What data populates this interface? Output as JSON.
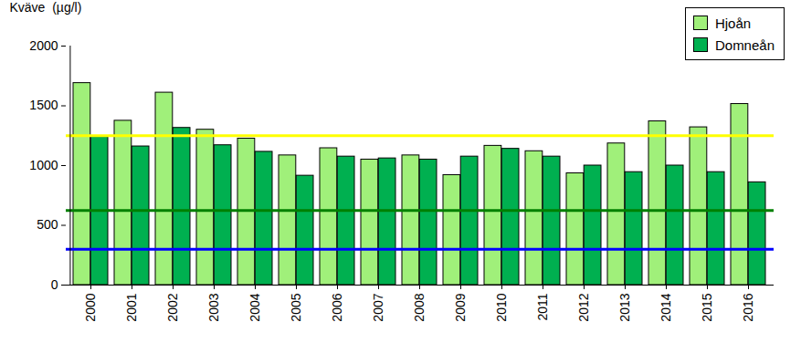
{
  "chart_data": {
    "type": "bar",
    "y_label": "Kväve  (µg/l)",
    "categories": [
      "2000",
      "2001",
      "2002",
      "2003",
      "2004",
      "2005",
      "2006",
      "2007",
      "2008",
      "2009",
      "2010",
      "2011",
      "2012",
      "2013",
      "2014",
      "2015",
      "2016"
    ],
    "series": [
      {
        "name": "Hjoån",
        "color": "#a0f07a",
        "values": [
          1690,
          1375,
          1610,
          1300,
          1225,
          1085,
          1145,
          1050,
          1085,
          920,
          1165,
          1120,
          935,
          1185,
          1370,
          1320,
          1515
        ]
      },
      {
        "name": "Domneån",
        "color": "#00b050",
        "values": [
          1240,
          1160,
          1315,
          1170,
          1115,
          915,
          1075,
          1060,
          1050,
          1075,
          1140,
          1075,
          1000,
          945,
          1000,
          945,
          860
        ]
      }
    ],
    "hlines": [
      {
        "value": 1250,
        "color": "#ffff00"
      },
      {
        "value": 625,
        "color": "#008000"
      },
      {
        "value": 300,
        "color": "#0000ff"
      }
    ],
    "ylim": [
      0,
      2000
    ],
    "yticks": [
      0,
      500,
      1000,
      1500,
      2000
    ],
    "legend": "top-right"
  }
}
